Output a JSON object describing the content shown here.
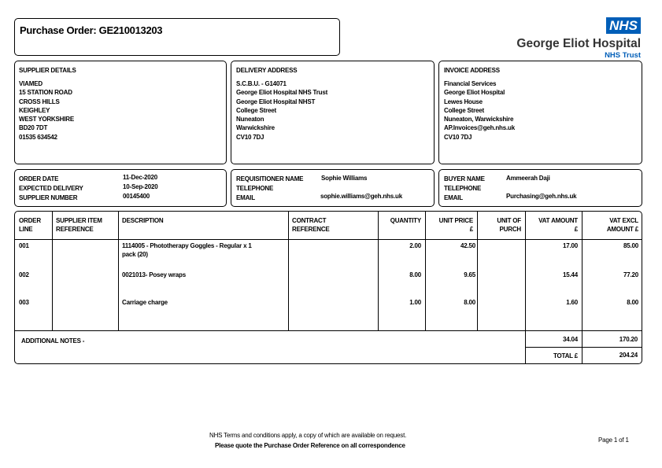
{
  "title": "Purchase Order: GE210013203",
  "logo": {
    "badge": "NHS",
    "name": "George Eliot Hospital",
    "trust": "NHS Trust",
    "color": "#005EB8"
  },
  "supplier": {
    "heading": "SUPPLIER DETAILS",
    "lines": [
      "VIAMED",
      "15 STATION ROAD",
      "CROSS HILLS",
      "KEIGHLEY",
      "WEST YORKSHIRE",
      "BD20 7DT",
      "01535 634542"
    ]
  },
  "delivery": {
    "heading": "DELIVERY ADDRESS",
    "lines": [
      "S.C.B.U. - G14071",
      "George Eliot Hospital NHS Trust",
      "George Eliot Hospital NHST",
      "College Street",
      "Nuneaton",
      "Warwickshire",
      "CV10 7DJ"
    ]
  },
  "invoice": {
    "heading": "INVOICE ADDRESS",
    "lines": [
      "Financial Services",
      "George Eliot Hospital",
      "Lewes House",
      "College Street",
      "Nuneaton, Warwickshire",
      "AP.Invoices@geh.nhs.uk",
      "CV10 7DJ"
    ]
  },
  "order": {
    "date_label": "ORDER DATE",
    "date": "11-Dec-2020",
    "delivery_label": "EXPECTED DELIVERY",
    "delivery": "10-Sep-2020",
    "supplier_no_label": "SUPPLIER NUMBER",
    "supplier_no": "00145400"
  },
  "requisitioner": {
    "name_label": "REQUISITIONER NAME",
    "name": "Sophie Williams",
    "tel_label": "TELEPHONE",
    "email_label": "EMAIL",
    "email": "sophie.williams@geh.nhs.uk"
  },
  "buyer": {
    "name_label": "BUYER NAME",
    "name": "Ammeerah Daji",
    "tel_label": "TELEPHONE",
    "email_label": "EMAIL",
    "email": "Purchasing@geh.nhs.uk"
  },
  "table": {
    "headers": [
      [
        "ORDER",
        "LINE"
      ],
      [
        "SUPPLIER ITEM",
        "REFERENCE"
      ],
      [
        "DESCRIPTION",
        ""
      ],
      [
        "CONTRACT",
        "REFERENCE"
      ],
      [
        "QUANTITY",
        ""
      ],
      [
        "UNIT PRICE",
        "£"
      ],
      [
        "UNIT OF",
        "PURCH"
      ],
      [
        "VAT AMOUNT",
        "£"
      ],
      [
        "VAT EXCL",
        "AMOUNT £"
      ]
    ],
    "rows": [
      {
        "line": "001",
        "ref": "",
        "desc1": "1114005 - Phototherapy Goggles -  Regular x 1",
        "desc2": "pack (20)",
        "contract": "",
        "qty": "2.00",
        "price": "42.50",
        "uop": "",
        "vat": "17.00",
        "excl": "85.00"
      },
      {
        "line": "002",
        "ref": "",
        "desc1": "0021013- Posey wraps",
        "desc2": "",
        "contract": "",
        "qty": "8.00",
        "price": "9.65",
        "uop": "",
        "vat": "15.44",
        "excl": "77.20"
      },
      {
        "line": "003",
        "ref": "",
        "desc1": "Carriage charge",
        "desc2": "",
        "contract": "",
        "qty": "1.00",
        "price": "8.00",
        "uop": "",
        "vat": "1.60",
        "excl": "8.00"
      }
    ],
    "notes_label": "ADDITIONAL NOTES -",
    "vat_total": "34.04",
    "excl_total": "170.20",
    "total_label": "TOTAL £",
    "total": "204.24"
  },
  "footer": {
    "terms": "NHS Terms and conditions apply, a copy of which are available on request.",
    "quote": "Please quote the Purchase Order Reference on all correspondence",
    "page": "Page 1 of 1"
  }
}
